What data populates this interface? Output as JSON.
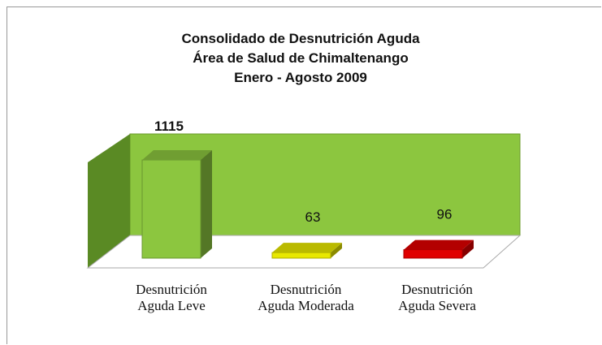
{
  "chart_data": {
    "type": "bar3d",
    "title": [
      "Consolidado de Desnutrición Aguda",
      "Área de Salud de Chimaltenango",
      "Enero - Agosto 2009"
    ],
    "categories": [
      "Desnutrición Aguda Leve",
      "Desnutrición Aguda Moderada",
      "Desnutrición Aguda Severa"
    ],
    "values": [
      1115,
      63,
      96
    ],
    "colors": [
      "#8cc63f",
      "#e8e800",
      "#e00000"
    ]
  }
}
